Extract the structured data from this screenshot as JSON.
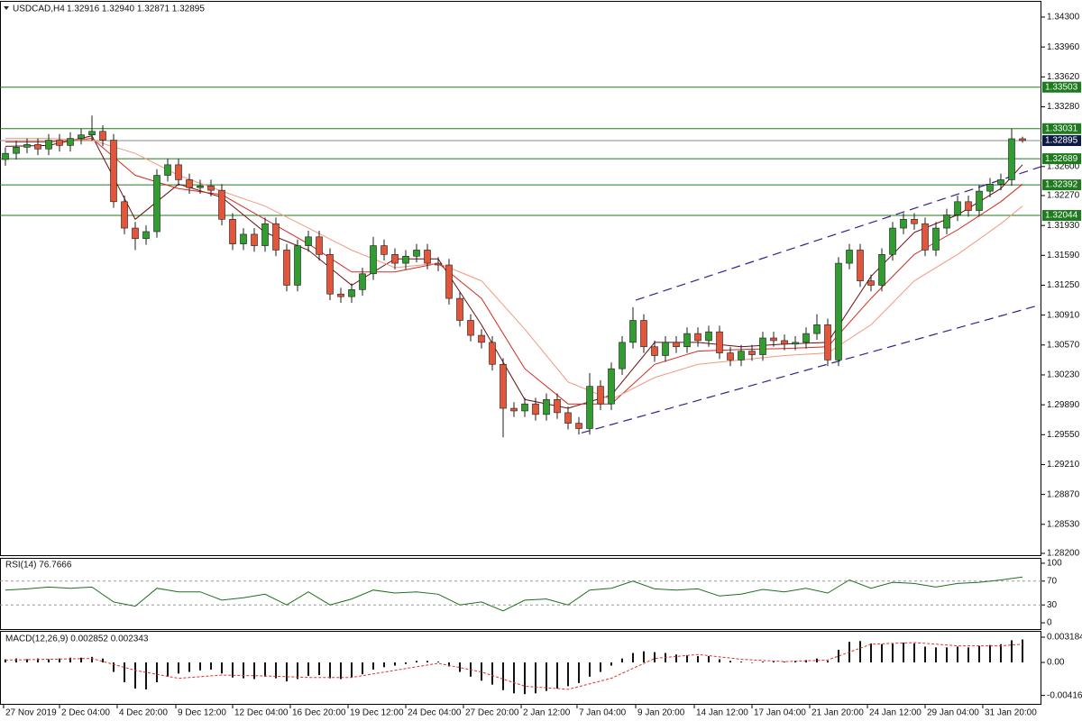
{
  "chart_data": [
    {
      "type": "candlestick",
      "title": "USDCAD,H4",
      "header_values": "1.32916 1.32940 1.32871 1.32895",
      "open": [
        1.3268,
        1.3275,
        1.3282,
        1.3285,
        1.328,
        1.329,
        1.3284,
        1.3292,
        1.3296,
        1.33,
        1.329,
        1.322,
        1.319,
        1.3178,
        1.3186,
        1.325,
        1.3262,
        1.3245,
        1.3236,
        1.3238,
        1.3233,
        1.32,
        1.3172,
        1.3183,
        1.317,
        1.3195,
        1.3165,
        1.3125,
        1.317,
        1.318,
        1.316,
        1.3115,
        1.3112,
        1.312,
        1.3138,
        1.317,
        1.316,
        1.315,
        1.3158,
        1.3165,
        1.315,
        1.3148,
        1.311,
        1.3085,
        1.3068,
        1.306,
        1.3035,
        1.2985,
        1.2982,
        1.299,
        1.2978,
        1.2995,
        1.298,
        1.2968,
        1.2962,
        1.301,
        1.299,
        1.303,
        1.306,
        1.3085,
        1.3055,
        1.3045,
        1.306,
        1.3055,
        1.307,
        1.3062,
        1.3072,
        1.3048,
        1.304,
        1.305,
        1.3046,
        1.3065,
        1.3062,
        1.3058,
        1.306,
        1.307,
        1.308,
        1.304,
        1.315,
        1.3165,
        1.313,
        1.3125,
        1.316,
        1.319,
        1.32,
        1.3195,
        1.3165,
        1.319,
        1.3205,
        1.322,
        1.321,
        1.3232,
        1.324,
        1.3245,
        1.32916
      ],
      "high": [
        1.3282,
        1.3289,
        1.3292,
        1.3292,
        1.3297,
        1.3297,
        1.3299,
        1.3303,
        1.3318,
        1.3307,
        1.3297,
        1.3227,
        1.3197,
        1.3193,
        1.3257,
        1.3269,
        1.3269,
        1.3252,
        1.3245,
        1.3245,
        1.324,
        1.3207,
        1.319,
        1.319,
        1.3202,
        1.3202,
        1.3172,
        1.3177,
        1.3187,
        1.3187,
        1.3167,
        1.3122,
        1.3127,
        1.3145,
        1.318,
        1.3177,
        1.3167,
        1.3165,
        1.3172,
        1.3172,
        1.3157,
        1.3155,
        1.3117,
        1.3092,
        1.3075,
        1.3067,
        1.3042,
        1.2992,
        1.2997,
        1.2997,
        1.3002,
        1.3002,
        1.2987,
        1.2975,
        1.3025,
        1.3017,
        1.3037,
        1.3067,
        1.31,
        1.3092,
        1.3062,
        1.3067,
        1.3067,
        1.3077,
        1.3077,
        1.3079,
        1.3079,
        1.3055,
        1.3057,
        1.3057,
        1.3072,
        1.3072,
        1.3069,
        1.3067,
        1.3077,
        1.3092,
        1.3087,
        1.3157,
        1.3172,
        1.3172,
        1.3137,
        1.3167,
        1.3197,
        1.3207,
        1.3207,
        1.3202,
        1.3197,
        1.3212,
        1.3227,
        1.3227,
        1.3239,
        1.3247,
        1.3252,
        1.3303,
        1.3294
      ],
      "low": [
        1.3261,
        1.3268,
        1.3275,
        1.3273,
        1.3273,
        1.3277,
        1.3277,
        1.3285,
        1.3289,
        1.3283,
        1.3213,
        1.3183,
        1.3165,
        1.3171,
        1.3179,
        1.3243,
        1.3238,
        1.3229,
        1.3229,
        1.3226,
        1.3193,
        1.3165,
        1.3165,
        1.3163,
        1.3163,
        1.3158,
        1.3118,
        1.3118,
        1.3163,
        1.3153,
        1.3108,
        1.3105,
        1.3105,
        1.3113,
        1.3131,
        1.3153,
        1.3143,
        1.3143,
        1.3151,
        1.3143,
        1.3141,
        1.3103,
        1.3078,
        1.3061,
        1.3053,
        1.3028,
        1.2952,
        1.2975,
        1.2975,
        1.2971,
        1.2971,
        1.2973,
        1.2961,
        1.2955,
        1.2955,
        1.2983,
        1.2983,
        1.3023,
        1.3053,
        1.3048,
        1.3038,
        1.3038,
        1.3048,
        1.3048,
        1.3055,
        1.3055,
        1.3041,
        1.3033,
        1.3033,
        1.3039,
        1.3039,
        1.3055,
        1.3051,
        1.3051,
        1.3053,
        1.3063,
        1.3033,
        1.3033,
        1.3143,
        1.3123,
        1.3118,
        1.3118,
        1.3153,
        1.3183,
        1.3188,
        1.3158,
        1.3158,
        1.3183,
        1.3198,
        1.3203,
        1.3203,
        1.3225,
        1.3233,
        1.3238,
        1.32871
      ],
      "close": [
        1.3275,
        1.3282,
        1.3285,
        1.328,
        1.329,
        1.3284,
        1.3292,
        1.3296,
        1.33,
        1.329,
        1.322,
        1.319,
        1.3178,
        1.3186,
        1.325,
        1.3262,
        1.3245,
        1.3236,
        1.3238,
        1.3233,
        1.32,
        1.3172,
        1.3183,
        1.317,
        1.3195,
        1.3165,
        1.3125,
        1.317,
        1.318,
        1.316,
        1.3115,
        1.3112,
        1.312,
        1.3138,
        1.317,
        1.316,
        1.315,
        1.3158,
        1.3165,
        1.315,
        1.3148,
        1.311,
        1.3085,
        1.3068,
        1.306,
        1.3035,
        1.2985,
        1.2982,
        1.299,
        1.2978,
        1.2995,
        1.298,
        1.2968,
        1.2962,
        1.301,
        1.299,
        1.303,
        1.306,
        1.3085,
        1.3055,
        1.3045,
        1.306,
        1.3055,
        1.307,
        1.3062,
        1.3072,
        1.3048,
        1.304,
        1.305,
        1.3046,
        1.3065,
        1.3062,
        1.3058,
        1.306,
        1.307,
        1.308,
        1.304,
        1.315,
        1.3165,
        1.313,
        1.3125,
        1.316,
        1.319,
        1.32,
        1.3195,
        1.3165,
        1.319,
        1.3205,
        1.322,
        1.321,
        1.3232,
        1.324,
        1.3245,
        1.32916,
        1.32895
      ],
      "up_color": "#2f9e2f",
      "down_color": "#e4553a",
      "edge_color": "#1c1c1c",
      "moving_averages": [
        {
          "color": "#6b0d0d",
          "x": [
            0,
            4,
            8,
            12,
            16,
            20,
            24,
            28,
            32,
            36,
            40,
            44,
            48,
            52,
            56,
            60,
            64,
            68,
            72,
            76,
            80,
            84,
            88,
            92,
            94
          ],
          "values": [
            1.3283,
            1.3284,
            1.3295,
            1.32,
            1.324,
            1.3225,
            1.3185,
            1.3165,
            1.3125,
            1.3155,
            1.3155,
            1.308,
            1.2995,
            1.2985,
            1.3,
            1.306,
            1.306,
            1.3055,
            1.3058,
            1.306,
            1.3135,
            1.3185,
            1.3205,
            1.3235,
            1.3262
          ]
        },
        {
          "color": "#d42a1e",
          "x": [
            0,
            4,
            8,
            12,
            16,
            20,
            24,
            28,
            32,
            36,
            40,
            44,
            48,
            52,
            56,
            60,
            64,
            68,
            72,
            76,
            80,
            84,
            88,
            92,
            94
          ],
          "values": [
            1.3288,
            1.3288,
            1.3292,
            1.325,
            1.3235,
            1.3228,
            1.32,
            1.3172,
            1.314,
            1.314,
            1.315,
            1.311,
            1.303,
            1.299,
            1.299,
            1.3035,
            1.305,
            1.3052,
            1.3053,
            1.3055,
            1.311,
            1.316,
            1.3188,
            1.322,
            1.324
          ]
        },
        {
          "color": "#f29a7e",
          "x": [
            0,
            4,
            8,
            12,
            16,
            20,
            24,
            28,
            32,
            36,
            40,
            44,
            48,
            52,
            56,
            60,
            64,
            68,
            72,
            76,
            80,
            84,
            88,
            92,
            94
          ],
          "values": [
            1.3292,
            1.3292,
            1.329,
            1.3275,
            1.325,
            1.3232,
            1.3215,
            1.319,
            1.3165,
            1.3145,
            1.315,
            1.313,
            1.3075,
            1.3015,
            1.2995,
            1.302,
            1.3035,
            1.304,
            1.3045,
            1.3048,
            1.308,
            1.313,
            1.316,
            1.3195,
            1.3215
          ]
        }
      ],
      "channel": [
        {
          "x": [
            58.25,
            95.75
          ],
          "y": [
            1.3108,
            1.326
          ]
        },
        {
          "x": [
            53.25,
            95.75
          ],
          "y": [
            1.2957,
            1.3103
          ]
        }
      ],
      "channel_color": "#3b1c8c",
      "levels": [
        1.33503,
        1.33031,
        1.32689,
        1.32392,
        1.32044
      ],
      "level_color": "#1d7a1d",
      "current_price": 1.32895,
      "current_color": "#0d1a45",
      "xlim": [
        -0.5,
        95.75
      ],
      "ylim": [
        1.28169,
        1.34474
      ],
      "yticks": [
        {
          "value": 1.343,
          "label": "1.34300"
        },
        {
          "value": 1.3396,
          "label": "1.33960"
        },
        {
          "value": 1.3362,
          "label": "1.33620"
        },
        {
          "value": 1.3328,
          "label": "1.33280"
        },
        {
          "value": 1.326,
          "label": "1.32600"
        },
        {
          "value": 1.3227,
          "label": "1.32270"
        },
        {
          "value": 1.3193,
          "label": "1.31930"
        },
        {
          "value": 1.3159,
          "label": "1.31590"
        },
        {
          "value": 1.3125,
          "label": "1.31250"
        },
        {
          "value": 1.3091,
          "label": "1.30910"
        },
        {
          "value": 1.3057,
          "label": "1.30570"
        },
        {
          "value": 1.3023,
          "label": "1.30230"
        },
        {
          "value": 1.2989,
          "label": "1.29890"
        },
        {
          "value": 1.2955,
          "label": "1.29550"
        },
        {
          "value": 1.2921,
          "label": "1.29210"
        },
        {
          "value": 1.2887,
          "label": "1.28870"
        },
        {
          "value": 1.2853,
          "label": "1.28530"
        },
        {
          "value": 1.282,
          "label": "1.28200"
        }
      ],
      "xticks": [
        {
          "value": -0.17,
          "label": "27 Nov 2019"
        },
        {
          "value": 5,
          "label": "2 Dec 04:00"
        },
        {
          "value": 10.33,
          "label": "4 Dec 20:00"
        },
        {
          "value": 15.75,
          "label": "9 Dec 12:00"
        },
        {
          "value": 21,
          "label": "12 Dec 04:00"
        },
        {
          "value": 26.33,
          "label": "16 Dec 20:00"
        },
        {
          "value": 31.67,
          "label": "19 Dec 12:00"
        },
        {
          "value": 37,
          "label": "24 Dec 04:00"
        },
        {
          "value": 42.33,
          "label": "27 Dec 20:00"
        },
        {
          "value": 47.67,
          "label": "2 Jan 12:00"
        },
        {
          "value": 52.83,
          "label": "7 Jan 04:00"
        },
        {
          "value": 58.25,
          "label": "9 Jan 20:00"
        },
        {
          "value": 63.67,
          "label": "14 Jan 12:00"
        },
        {
          "value": 69,
          "label": "17 Jan 04:00"
        },
        {
          "value": 74.33,
          "label": "21 Jan 20:00"
        },
        {
          "value": 79.67,
          "label": "24 Jan 12:00"
        },
        {
          "value": 85,
          "label": "29 Jan 04:00"
        },
        {
          "value": 90.33,
          "label": "31 Jan 20:00"
        }
      ]
    },
    {
      "type": "line",
      "title": "RSI(14) 76.7666",
      "color": "#1f6e1f",
      "x": [
        0,
        2,
        4,
        6,
        8,
        10,
        12,
        14,
        16,
        18,
        20,
        22,
        24,
        26,
        28,
        30,
        32,
        34,
        36,
        38,
        40,
        42,
        44,
        46,
        48,
        50,
        52,
        54,
        56,
        58,
        60,
        62,
        64,
        66,
        68,
        70,
        72,
        74,
        76,
        78,
        80,
        82,
        84,
        86,
        88,
        90,
        92,
        94
      ],
      "values": [
        55,
        57,
        60,
        58,
        60,
        35,
        28,
        58,
        52,
        52,
        38,
        42,
        48,
        30,
        52,
        30,
        40,
        55,
        50,
        52,
        48,
        30,
        35,
        20,
        38,
        40,
        30,
        55,
        58,
        70,
        57,
        55,
        57,
        45,
        48,
        56,
        52,
        58,
        50,
        72,
        58,
        68,
        66,
        60,
        66,
        68,
        72,
        77
      ],
      "ylim": [
        -12,
        109
      ],
      "yticks": [
        100,
        70,
        30,
        0
      ],
      "dashed_levels": [
        70,
        30
      ]
    },
    {
      "type": "bar",
      "title": "MACD(12,26,9) 0.002852 0.002343",
      "histogram": {
        "color": "#111111",
        "values": [
          0.0004,
          0.0005,
          0.0004,
          0.0005,
          0.0004,
          0.0005,
          0.0006,
          0.0006,
          0.0007,
          0.0005,
          -0.0012,
          -0.0025,
          -0.0033,
          -0.0034,
          -0.0025,
          -0.0018,
          -0.0014,
          -0.0012,
          -0.001,
          -0.0009,
          -0.0014,
          -0.0019,
          -0.002,
          -0.0021,
          -0.0018,
          -0.002,
          -0.0024,
          -0.0021,
          -0.0017,
          -0.0016,
          -0.002,
          -0.0021,
          -0.0019,
          -0.0015,
          -0.0009,
          -0.0006,
          -0.0004,
          -0.0002,
          0.0002,
          0.0002,
          0.0001,
          -0.0005,
          -0.0012,
          -0.0018,
          -0.0023,
          -0.0028,
          -0.0035,
          -0.0039,
          -0.004,
          -0.0039,
          -0.0036,
          -0.0033,
          -0.003,
          -0.0026,
          -0.0018,
          -0.0012,
          -0.0004,
          0.0005,
          0.0012,
          0.0014,
          0.0013,
          0.0012,
          0.001,
          0.0009,
          0.0008,
          0.0008,
          0.0004,
          0.0002,
          0.0001,
          0.0,
          0.0001,
          0.0001,
          0.0001,
          0.0002,
          0.0003,
          0.0005,
          0.0002,
          0.0016,
          0.0026,
          0.0027,
          0.0024,
          0.0023,
          0.0024,
          0.0025,
          0.0024,
          0.002,
          0.0019,
          0.0019,
          0.002,
          0.0019,
          0.0021,
          0.0022,
          0.0023,
          0.0028,
          0.0029
        ]
      },
      "signal": {
        "color": "#e0302a",
        "x": [
          0,
          4,
          8,
          12,
          16,
          20,
          24,
          28,
          32,
          36,
          40,
          44,
          48,
          52,
          56,
          60,
          64,
          68,
          72,
          76,
          80,
          84,
          88,
          92,
          94
        ],
        "values": [
          0.0003,
          0.0004,
          0.0005,
          -0.001,
          -0.002,
          -0.0016,
          -0.0017,
          -0.0019,
          -0.0019,
          -0.001,
          -0.0001,
          -0.0012,
          -0.003,
          -0.0034,
          -0.002,
          0.0005,
          0.001,
          0.0004,
          0.0001,
          0.0003,
          0.0023,
          0.0025,
          0.0021,
          0.0021,
          0.0023
        ]
      },
      "ylim": [
        -0.00523,
        0.00387
      ],
      "yticks": [
        0.003184,
        {
          "value": 0,
          "label": "0.00"
        },
        -0.004165
      ]
    }
  ]
}
